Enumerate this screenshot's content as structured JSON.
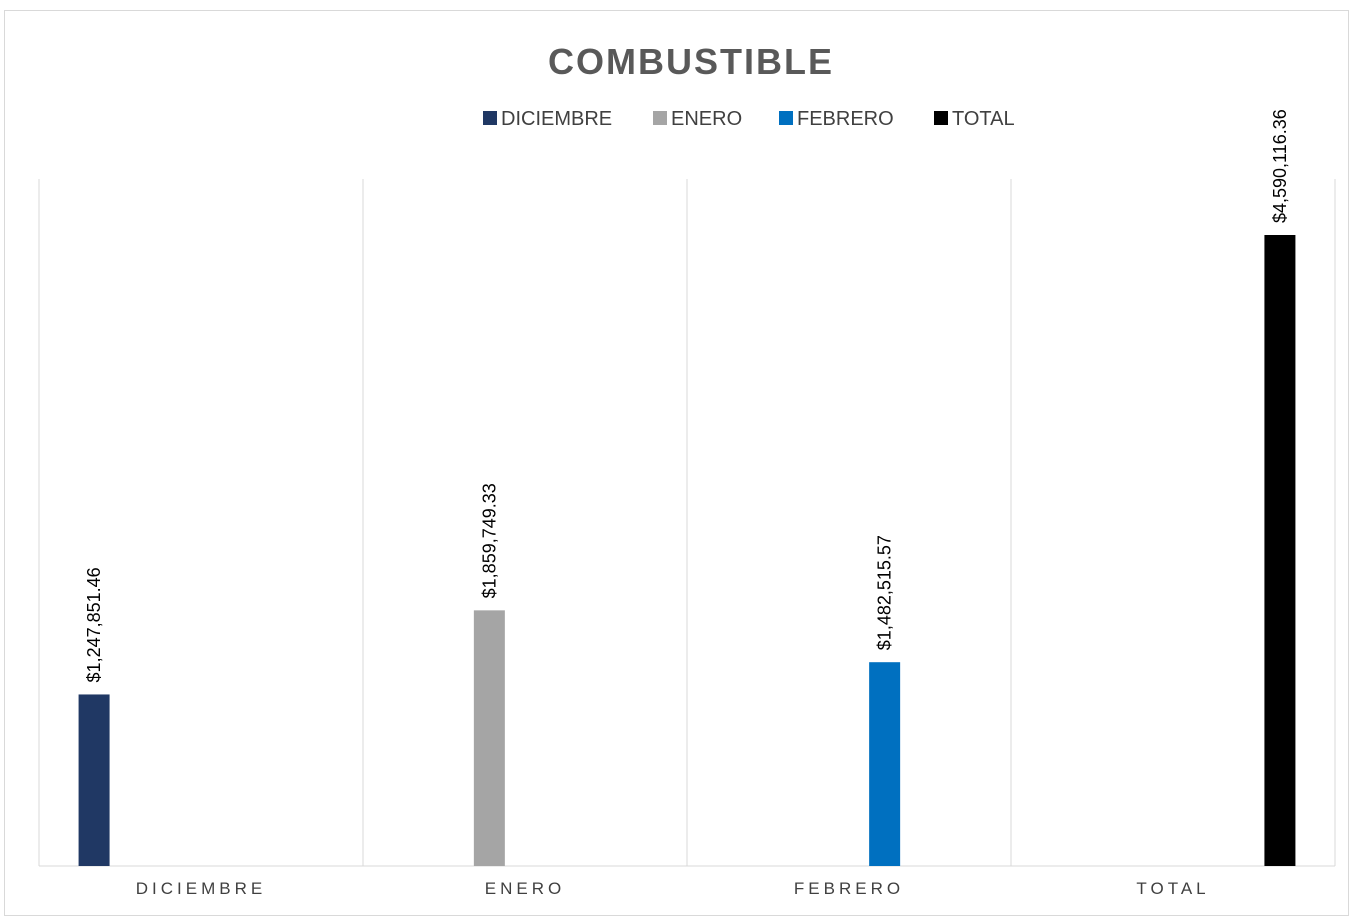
{
  "chart_data": {
    "type": "bar",
    "title": "COMBUSTIBLE",
    "categories": [
      "DICIEMBRE",
      "ENERO",
      "FEBRERO",
      "TOTAL"
    ],
    "series": [
      {
        "name": "DICIEMBRE",
        "color": "#203864",
        "values": [
          1247851.46,
          null,
          null,
          null
        ]
      },
      {
        "name": "ENERO",
        "color": "#A5A5A5",
        "values": [
          null,
          1859749.33,
          null,
          null
        ]
      },
      {
        "name": "FEBRERO",
        "color": "#0070C0",
        "values": [
          null,
          null,
          1482515.57,
          null
        ]
      },
      {
        "name": "TOTAL",
        "color": "#000000",
        "values": [
          null,
          null,
          null,
          4590116.36
        ]
      }
    ],
    "data_labels": [
      "$1,247,851.46",
      "$1,859,749.33",
      "$1,482,515.57",
      "$4,590,116.36"
    ],
    "ylim": [
      0,
      5000000
    ],
    "grid": "vertical category separators",
    "legend": "top",
    "xlabel": "",
    "ylabel": ""
  }
}
